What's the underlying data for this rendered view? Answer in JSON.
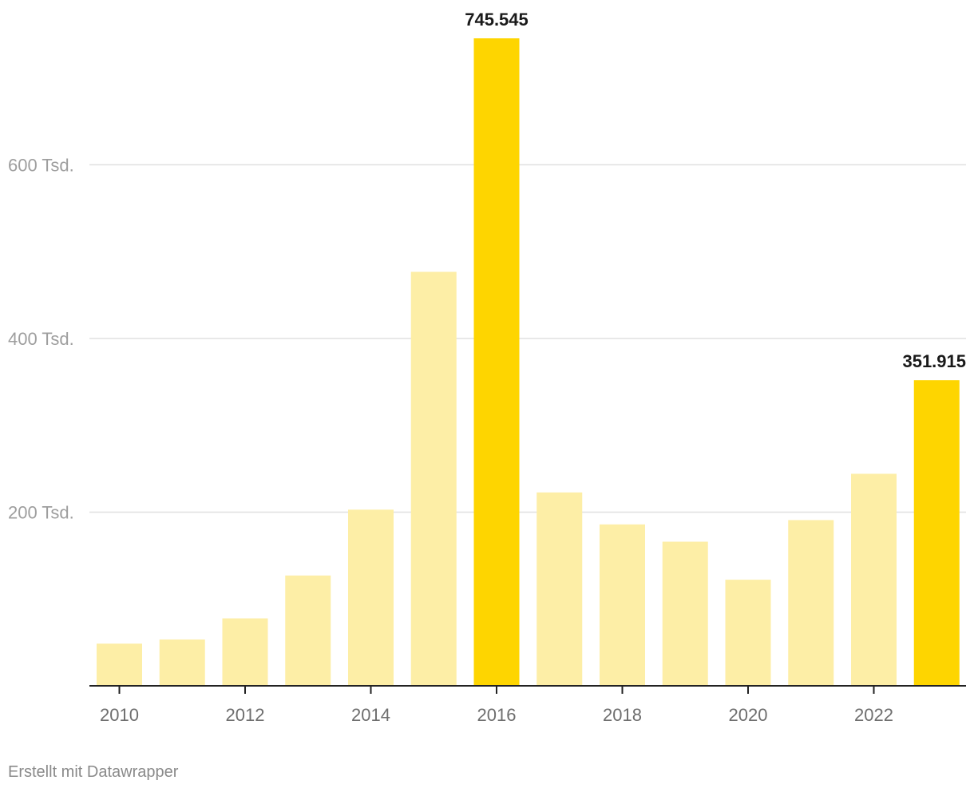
{
  "chart_data": {
    "type": "bar",
    "categories": [
      "2010",
      "2011",
      "2012",
      "2013",
      "2014",
      "2015",
      "2016",
      "2017",
      "2018",
      "2019",
      "2020",
      "2021",
      "2022",
      "2023"
    ],
    "values": [
      48589,
      53347,
      77651,
      127023,
      202834,
      476649,
      745545,
      222683,
      185853,
      165938,
      122170,
      190816,
      244132,
      351915
    ],
    "x_tick_labels": [
      "2010",
      "2012",
      "2014",
      "2016",
      "2018",
      "2020",
      "2022"
    ],
    "y_ticks": [
      {
        "value": 200000,
        "label": "200 Tsd."
      },
      {
        "value": 400000,
        "label": "400 Tsd."
      },
      {
        "value": 600000,
        "label": "600 Tsd."
      }
    ],
    "ylim": [
      0,
      745545
    ],
    "highlighted": [
      "2016",
      "2023"
    ],
    "data_labels": [
      {
        "category": "2016",
        "label": "745.545"
      },
      {
        "category": "2023",
        "label": "351.915"
      }
    ],
    "grid": true,
    "colors": {
      "bar": "#fdeea6",
      "highlight": "#fed500",
      "grid": "#e0e0e0",
      "axis": "#222222",
      "tick_text": "#9e9e9e",
      "x_tick_text": "#6e6e6e",
      "data_label": "#1a1a1a"
    }
  },
  "footer": {
    "credit": "Erstellt mit Datawrapper"
  }
}
